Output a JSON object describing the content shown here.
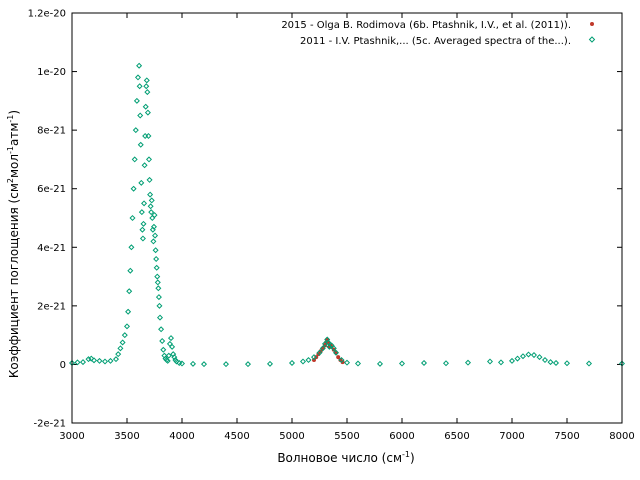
{
  "chart_data": {
    "type": "scatter",
    "xlabel": "Волновое число (см",
    "xlabel_sup": "-1",
    "xlabel_end": ")",
    "ylabel_parts": [
      "Коэффициент поглощения (см",
      "2",
      "мол",
      "-1",
      "атм",
      "-1",
      ")"
    ],
    "xlim": [
      3000,
      8000
    ],
    "ylim": [
      -2e-21,
      1.2e-20
    ],
    "x_ticks": [
      3000,
      3500,
      4000,
      4500,
      5000,
      5500,
      6000,
      6500,
      7000,
      7500,
      8000
    ],
    "x_tick_labels": [
      "3000",
      "3500",
      "4000",
      "4500",
      "5000",
      "5500",
      "6000",
      "6500",
      "7000",
      "7500",
      "8000"
    ],
    "y_ticks": [
      -2e-21,
      0,
      2e-21,
      4e-21,
      6e-21,
      8e-21,
      1e-20,
      1.2e-20
    ],
    "y_tick_labels": [
      "-2e-21",
      "0",
      "2e-21",
      "4e-21",
      "6e-21",
      "8e-21",
      "1e-20",
      "1.2e-20"
    ],
    "grid": false,
    "legend_position": "top-right",
    "series": [
      {
        "name": "2015 - Olga B. Rodimova (6b. Ptashnik, I.V., et al. (2011)).",
        "color": "#c0392b",
        "marker": "circle",
        "x": [
          5200,
          5220,
          5240,
          5260,
          5280,
          5300,
          5310,
          5320,
          5330,
          5340,
          5350,
          5360,
          5380,
          5400,
          5420,
          5440,
          5460
        ],
        "y": [
          1.5e-22,
          2.5e-22,
          3.5e-22,
          4.5e-22,
          5.5e-22,
          6.5e-22,
          7.5e-22,
          8.5e-22,
          7.5e-22,
          6e-22,
          6.5e-22,
          6e-22,
          5e-22,
          4e-22,
          2.5e-22,
          1.5e-22,
          8e-23
        ]
      },
      {
        "name": "2011 - I.V. Ptashnik,... (5c. Averaged spectra of the...).",
        "color": "#009e73",
        "marker": "diamond",
        "x": [
          3000,
          3050,
          3100,
          3150,
          3175,
          3200,
          3250,
          3300,
          3350,
          3400,
          3420,
          3440,
          3460,
          3480,
          3500,
          3510,
          3520,
          3530,
          3540,
          3550,
          3560,
          3570,
          3580,
          3590,
          3600,
          3610,
          3615,
          3620,
          3625,
          3630,
          3635,
          3640,
          3645,
          3650,
          3655,
          3660,
          3665,
          3670,
          3675,
          3680,
          3685,
          3690,
          3695,
          3700,
          3705,
          3710,
          3715,
          3720,
          3725,
          3730,
          3735,
          3740,
          3745,
          3750,
          3755,
          3760,
          3765,
          3770,
          3775,
          3780,
          3785,
          3790,
          3795,
          3800,
          3810,
          3820,
          3830,
          3840,
          3850,
          3860,
          3870,
          3880,
          3890,
          3900,
          3910,
          3920,
          3930,
          3940,
          3950,
          3975,
          4000,
          4100,
          4200,
          4400,
          4600,
          4800,
          5000,
          5100,
          5150,
          5200,
          5250,
          5280,
          5300,
          5320,
          5330,
          5340,
          5360,
          5380,
          5400,
          5450,
          5500,
          5600,
          5800,
          6000,
          6200,
          6400,
          6600,
          6800,
          6900,
          7000,
          7050,
          7100,
          7150,
          7200,
          7250,
          7300,
          7350,
          7400,
          7500,
          7700,
          8000
        ],
        "y": [
          5e-23,
          7e-23,
          8e-23,
          1.8e-22,
          2e-22,
          1.4e-22,
          1.2e-22,
          1e-22,
          1.2e-22,
          1.8e-22,
          3.5e-22,
          5.5e-22,
          7.5e-22,
          1e-21,
          1.3e-21,
          1.8e-21,
          2.5e-21,
          3.2e-21,
          4e-21,
          5e-21,
          6e-21,
          7e-21,
          8e-21,
          9e-21,
          9.8e-21,
          1.02e-20,
          9.5e-21,
          8.5e-21,
          7.5e-21,
          6.2e-21,
          5.2e-21,
          4.6e-21,
          4.3e-21,
          4.8e-21,
          5.5e-21,
          6.8e-21,
          7.8e-21,
          8.8e-21,
          9.5e-21,
          9.7e-21,
          9.3e-21,
          8.6e-21,
          7.8e-21,
          7e-21,
          6.3e-21,
          5.8e-21,
          5.4e-21,
          5.2e-21,
          5.6e-21,
          5e-21,
          4.6e-21,
          4.2e-21,
          4.7e-21,
          5.1e-21,
          4.4e-21,
          3.9e-21,
          3.6e-21,
          3.3e-21,
          3e-21,
          2.8e-21,
          2.6e-21,
          2.3e-21,
          2e-21,
          1.6e-21,
          1.2e-21,
          8e-22,
          5e-22,
          3e-22,
          2e-22,
          1.5e-22,
          1.2e-22,
          3e-22,
          7e-22,
          9e-22,
          6e-22,
          3.5e-22,
          2.5e-22,
          1.5e-22,
          1e-22,
          5e-23,
          3e-23,
          2e-23,
          1e-23,
          1e-23,
          1e-23,
          2e-23,
          5e-23,
          1e-22,
          1.5e-22,
          2.5e-22,
          4e-22,
          5.5e-22,
          7e-22,
          8.5e-22,
          7.5e-22,
          6e-22,
          6.5e-22,
          5.5e-22,
          4e-22,
          1.5e-22,
          6e-23,
          3e-23,
          2e-23,
          3e-23,
          5e-23,
          4e-23,
          6e-23,
          1e-22,
          7e-23,
          1.2e-22,
          2e-22,
          2.8e-22,
          3.4e-22,
          3.2e-22,
          2.5e-22,
          1.5e-22,
          8e-23,
          5e-23,
          4e-23,
          3e-23,
          3e-23
        ]
      }
    ]
  }
}
